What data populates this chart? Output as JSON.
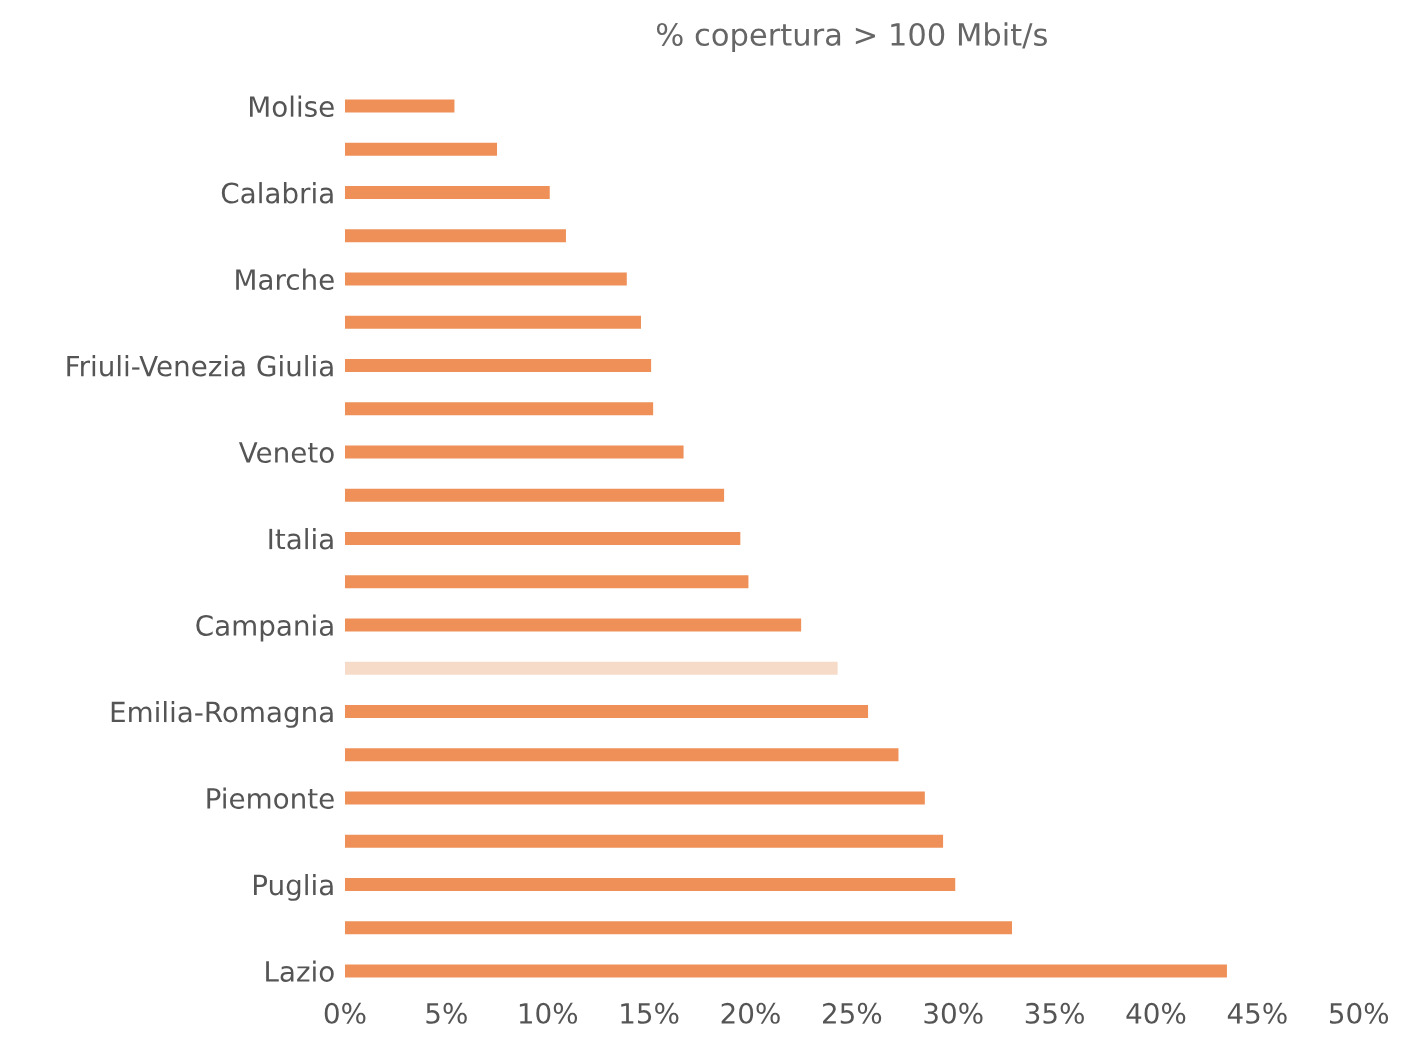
{
  "chart_data": {
    "type": "bar",
    "orientation": "horizontal",
    "title": "% copertura > 100 Mbit/s",
    "categories": [
      "Molise",
      null,
      "Calabria",
      null,
      "Marche",
      null,
      "Friuli-Venezia Giulia",
      null,
      "Veneto",
      null,
      "Italia",
      null,
      "Campania",
      null,
      "Emilia-Romagna",
      null,
      "Piemonte",
      null,
      "Puglia",
      null,
      "Lazio"
    ],
    "values": [
      5.4,
      7.5,
      10.1,
      10.9,
      13.9,
      14.6,
      15.1,
      15.2,
      16.7,
      18.7,
      19.5,
      19.9,
      22.5,
      24.3,
      25.8,
      27.3,
      28.6,
      29.5,
      30.1,
      32.9,
      43.5
    ],
    "colors": [
      "#ee9058",
      "#ee9058",
      "#ee9058",
      "#ee9058",
      "#ee9058",
      "#ee9058",
      "#ee9058",
      "#ee9058",
      "#ee9058",
      "#ee9058",
      "#ee9058",
      "#ee9058",
      "#ee9058",
      "#f6dcc8",
      "#ee9058",
      "#ee9058",
      "#ee9058",
      "#ee9058",
      "#ee9058",
      "#ee9058",
      "#ee9058"
    ],
    "xlim": [
      0,
      50
    ],
    "xticks": [
      {
        "value": 0,
        "label": "0%"
      },
      {
        "value": 5,
        "label": "5%"
      },
      {
        "value": 10,
        "label": "10%"
      },
      {
        "value": 15,
        "label": "15%"
      },
      {
        "value": 20,
        "label": "20%"
      },
      {
        "value": 25,
        "label": "25%"
      },
      {
        "value": 30,
        "label": "30%"
      },
      {
        "value": 35,
        "label": "35%"
      },
      {
        "value": 40,
        "label": "40%"
      },
      {
        "value": 45,
        "label": "45%"
      },
      {
        "value": 50,
        "label": "50%"
      }
    ],
    "grid": false,
    "legend": false
  }
}
